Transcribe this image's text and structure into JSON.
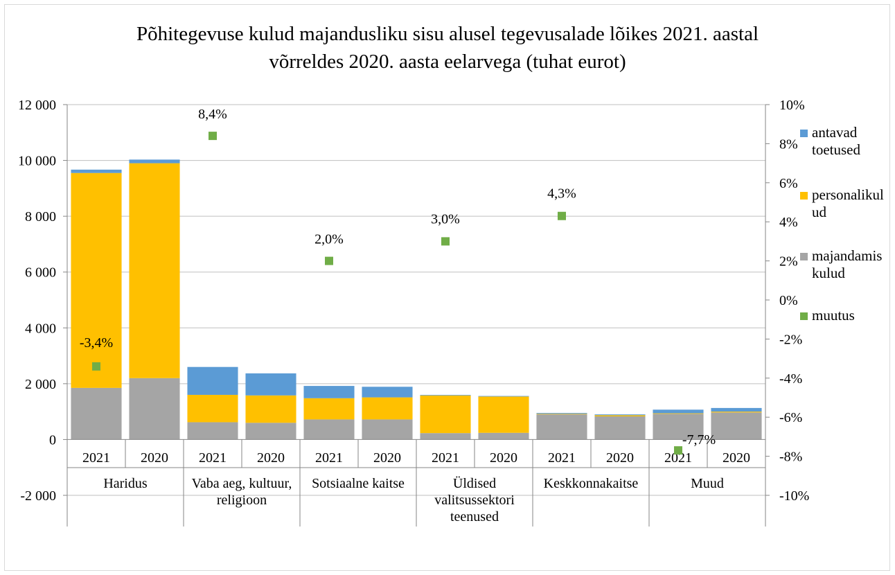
{
  "chart_data": {
    "type": "bar",
    "title_line1": "Põhitegevuse kulud majandusliku sisu alusel tegevusalade lõikes 2021. aastal",
    "title_line2": "võrreldes 2020. aasta eelarvega (tuhat eurot)",
    "xlabel": "",
    "ylabel": "",
    "y_left": {
      "range": [
        -2000,
        12000
      ],
      "ticks": [
        -2000,
        0,
        2000,
        4000,
        6000,
        8000,
        10000,
        12000
      ],
      "tick_labels": [
        "-2 000",
        "0",
        "2 000",
        "4 000",
        "6 000",
        "8 000",
        "10 000",
        "12 000"
      ]
    },
    "y_right": {
      "range": [
        -10,
        10
      ],
      "ticks": [
        -10,
        -8,
        -6,
        -4,
        -2,
        0,
        2,
        4,
        6,
        8,
        10
      ],
      "tick_labels": [
        "-10%",
        "-8%",
        "-6%",
        "-4%",
        "-2%",
        "0%",
        "2%",
        "4%",
        "6%",
        "8%",
        "10%"
      ]
    },
    "grid": true,
    "legend_position": "right",
    "groups": [
      {
        "label": [
          "Haridus"
        ],
        "years": [
          "2021",
          "2020"
        ]
      },
      {
        "label": [
          "Vaba aeg, kultuur,",
          "religioon"
        ],
        "years": [
          "2021",
          "2020"
        ]
      },
      {
        "label": [
          "Sotsiaalne kaitse"
        ],
        "years": [
          "2021",
          "2020"
        ]
      },
      {
        "label": [
          "Üldised",
          "valitsussektori",
          "teenused"
        ],
        "years": [
          "2021",
          "2020"
        ]
      },
      {
        "label": [
          "Keskkonnakaitse"
        ],
        "years": [
          "2021",
          "2020"
        ]
      },
      {
        "label": [
          "Muud"
        ],
        "years": [
          "2021",
          "2020"
        ]
      }
    ],
    "series": [
      {
        "name": "majandamis kulud",
        "legend_lines": [
          "majandamis",
          "kulud"
        ],
        "color": "#a5a5a5",
        "values": [
          1850,
          2200,
          620,
          600,
          720,
          720,
          230,
          240,
          900,
          830,
          920,
          970
        ]
      },
      {
        "name": "personalikulud",
        "legend_lines": [
          "personalikul",
          "ud"
        ],
        "color": "#ffc000",
        "values": [
          7700,
          7700,
          980,
          980,
          760,
          790,
          1350,
          1300,
          20,
          40,
          20,
          30
        ]
      },
      {
        "name": "antavad toetused",
        "legend_lines": [
          "antavad",
          "toetused"
        ],
        "color": "#5b9bd5",
        "values": [
          120,
          130,
          1000,
          790,
          440,
          380,
          20,
          20,
          30,
          30,
          130,
          130
        ]
      }
    ],
    "change_series": {
      "name": "muutus",
      "legend_lines": [
        "muutus"
      ],
      "color": "#70ad47",
      "values": [
        -3.4,
        8.4,
        2.0,
        3.0,
        4.3,
        -7.7
      ],
      "labels": [
        "-3,4%",
        "8,4%",
        "2,0%",
        "3,0%",
        "4,3%",
        "-7,7%"
      ]
    }
  }
}
